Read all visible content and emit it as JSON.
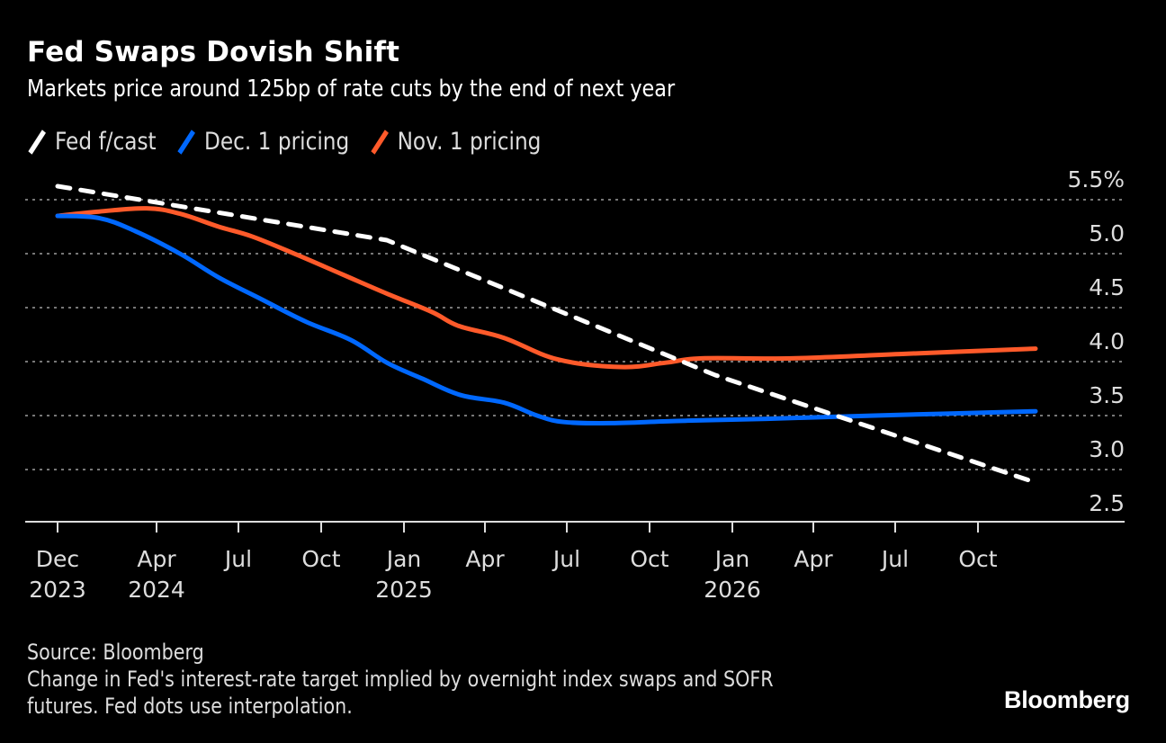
{
  "header": {
    "title": "Fed Swaps Dovish Shift",
    "subtitle": "Markets price around 125bp of rate cuts by the end of next year"
  },
  "legend": [
    {
      "label": "Fed f/cast",
      "color": "#ffffff",
      "icon": "slash-line-icon"
    },
    {
      "label": "Dec. 1 pricing",
      "color": "#0068ff",
      "icon": "slash-line-icon"
    },
    {
      "label": "Nov. 1 pricing",
      "color": "#ff5a2a",
      "icon": "slash-line-icon"
    }
  ],
  "chart_data": {
    "type": "line",
    "title": "Fed Swaps Dovish Shift",
    "subtitle": "Markets price around 125bp of rate cuts by the end of next year",
    "xlabel": "",
    "ylabel": "",
    "y_unit": "%",
    "ylim": [
      2.5,
      5.5
    ],
    "yticks": [
      2.5,
      3.0,
      3.5,
      4.0,
      4.5,
      5.0,
      5.5
    ],
    "ytick_labels": [
      "2.5",
      "3.0",
      "3.5",
      "4.0",
      "4.5",
      "5.0",
      "5.5%"
    ],
    "y_axis_side": "right",
    "grid": true,
    "grid_style": "dotted horizontal",
    "legend_position": "top-left",
    "xrange": [
      "2023-12-13",
      "2026-12-04"
    ],
    "xticks": [
      {
        "date": "2023-12-13",
        "label": "Dec",
        "year": "2023"
      },
      {
        "date": "2024-04-01",
        "label": "Apr",
        "year": "2024"
      },
      {
        "date": "2024-07-01",
        "label": "Jul",
        "year": ""
      },
      {
        "date": "2024-10-01",
        "label": "Oct",
        "year": ""
      },
      {
        "date": "2025-01-01",
        "label": "Jan",
        "year": "2025"
      },
      {
        "date": "2025-04-01",
        "label": "Apr",
        "year": ""
      },
      {
        "date": "2025-07-01",
        "label": "Jul",
        "year": ""
      },
      {
        "date": "2025-10-01",
        "label": "Oct",
        "year": ""
      },
      {
        "date": "2026-01-01",
        "label": "Jan",
        "year": "2026"
      },
      {
        "date": "2026-04-01",
        "label": "Apr",
        "year": ""
      },
      {
        "date": "2026-07-01",
        "label": "Jul",
        "year": ""
      },
      {
        "date": "2026-10-01",
        "label": "Oct",
        "year": ""
      }
    ],
    "series": [
      {
        "name": "Fed f/cast",
        "color": "#ffffff",
        "style": "dashed",
        "points": [
          [
            "2023-12-13",
            5.625
          ],
          [
            "2024-12-13",
            5.125
          ],
          [
            "2025-12-13",
            3.875
          ],
          [
            "2026-12-04",
            2.88
          ]
        ]
      },
      {
        "name": "Dec. 1 pricing",
        "color": "#0068ff",
        "style": "solid",
        "points": [
          [
            "2023-12-13",
            5.35
          ],
          [
            "2024-01-28",
            5.33
          ],
          [
            "2024-03-08",
            5.21
          ],
          [
            "2024-04-27",
            5.0
          ],
          [
            "2024-06-09",
            4.78
          ],
          [
            "2024-07-26",
            4.58
          ],
          [
            "2024-09-14",
            4.37
          ],
          [
            "2024-11-03",
            4.2
          ],
          [
            "2024-12-13",
            3.99
          ],
          [
            "2025-01-22",
            3.84
          ],
          [
            "2025-03-05",
            3.69
          ],
          [
            "2025-04-22",
            3.62
          ],
          [
            "2025-05-29",
            3.5
          ],
          [
            "2025-06-28",
            3.44
          ],
          [
            "2025-08-20",
            3.43
          ],
          [
            "2025-10-31",
            3.45
          ],
          [
            "2026-02-08",
            3.47
          ],
          [
            "2026-06-08",
            3.5
          ],
          [
            "2026-12-04",
            3.54
          ]
        ]
      },
      {
        "name": "Nov. 1 pricing",
        "color": "#ff5a2a",
        "style": "solid",
        "points": [
          [
            "2023-12-13",
            5.35
          ],
          [
            "2024-01-28",
            5.39
          ],
          [
            "2024-03-21",
            5.42
          ],
          [
            "2024-04-27",
            5.37
          ],
          [
            "2024-06-09",
            5.25
          ],
          [
            "2024-07-16",
            5.16
          ],
          [
            "2024-09-04",
            4.99
          ],
          [
            "2024-10-24",
            4.81
          ],
          [
            "2024-12-13",
            4.63
          ],
          [
            "2025-02-01",
            4.46
          ],
          [
            "2025-03-03",
            4.33
          ],
          [
            "2025-04-22",
            4.22
          ],
          [
            "2025-06-21",
            4.02
          ],
          [
            "2025-08-30",
            3.95
          ],
          [
            "2025-10-19",
            3.99
          ],
          [
            "2025-11-28",
            4.03
          ],
          [
            "2026-03-08",
            4.03
          ],
          [
            "2026-07-06",
            4.07
          ],
          [
            "2026-12-04",
            4.12
          ]
        ]
      }
    ]
  },
  "footer": {
    "source": "Source: Bloomberg",
    "note_line1": "Change in Fed's interest-rate target implied by overnight index swaps and SOFR",
    "note_line2": "futures. Fed dots use interpolation."
  },
  "logo": {
    "text": "Bloomberg"
  }
}
